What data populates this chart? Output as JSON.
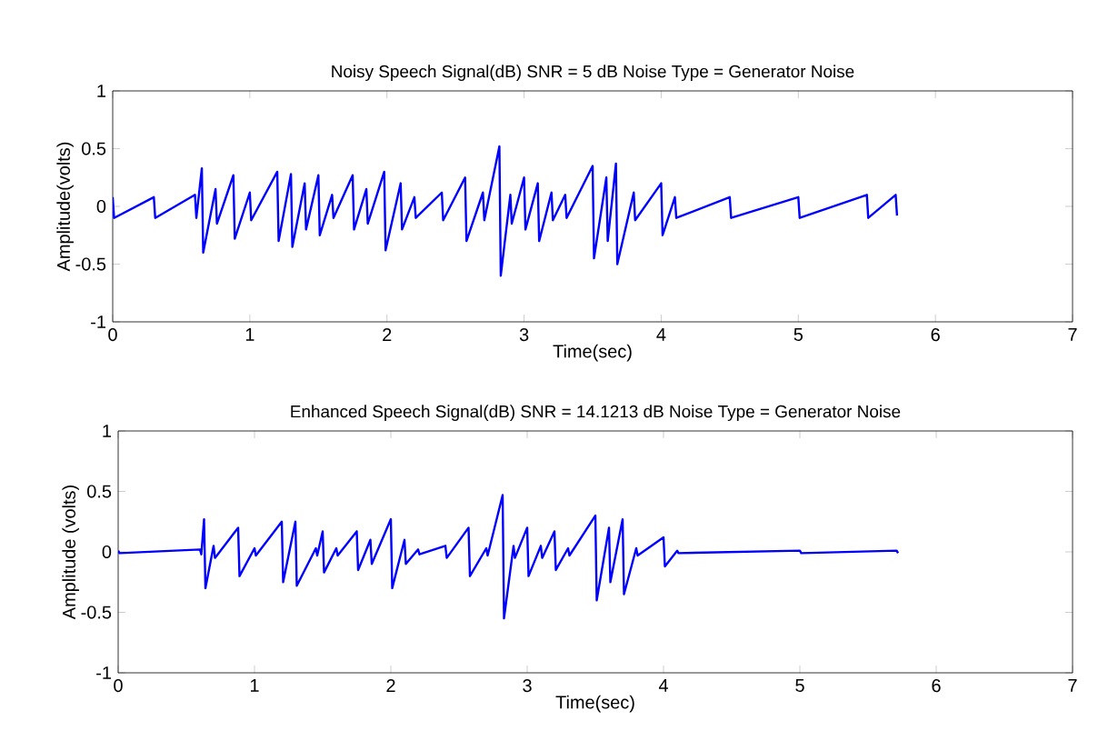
{
  "chart_data": [
    {
      "type": "line",
      "title": "Noisy Speech Signal(dB) SNR = 5 dB Noise Type = Generator Noise",
      "xlabel": "Time(sec)",
      "ylabel": "Amplitude(volts)",
      "xlim": [
        0,
        7
      ],
      "ylim": [
        -1,
        1
      ],
      "xticks": [
        0,
        1,
        2,
        3,
        4,
        5,
        6,
        7
      ],
      "yticks": [
        -1,
        -0.5,
        0,
        0.5,
        1
      ],
      "grid": false,
      "series": [
        {
          "color": "#0000ff",
          "x": [
            0,
            0.01,
            0.3,
            0.31,
            0.6,
            0.61,
            0.65,
            0.66,
            0.75,
            0.76,
            0.88,
            0.89,
            1.0,
            1.01,
            1.2,
            1.21,
            1.3,
            1.31,
            1.4,
            1.41,
            1.5,
            1.51,
            1.6,
            1.61,
            1.75,
            1.76,
            1.85,
            1.86,
            1.98,
            1.99,
            2.1,
            2.11,
            2.2,
            2.21,
            2.4,
            2.41,
            2.57,
            2.58,
            2.7,
            2.71,
            2.82,
            2.83,
            2.9,
            2.91,
            3.0,
            3.01,
            3.1,
            3.11,
            3.2,
            3.21,
            3.3,
            3.31,
            3.5,
            3.51,
            3.6,
            3.61,
            3.67,
            3.68,
            3.8,
            3.81,
            4.0,
            4.01,
            4.1,
            4.11,
            4.5,
            4.51,
            5.0,
            5.01,
            5.5,
            5.51,
            5.71,
            5.72
          ],
          "values": [
            0.08,
            -0.1,
            0.08,
            -0.1,
            0.1,
            -0.1,
            0.33,
            -0.4,
            0.15,
            -0.15,
            0.27,
            -0.28,
            0.12,
            -0.12,
            0.3,
            -0.3,
            0.28,
            -0.35,
            0.2,
            -0.2,
            0.27,
            -0.25,
            0.1,
            -0.1,
            0.27,
            -0.2,
            0.15,
            -0.15,
            0.3,
            -0.38,
            0.2,
            -0.2,
            0.08,
            -0.1,
            0.12,
            -0.12,
            0.25,
            -0.3,
            0.12,
            -0.12,
            0.52,
            -0.6,
            0.1,
            -0.15,
            0.25,
            -0.2,
            0.2,
            -0.3,
            0.12,
            -0.12,
            0.1,
            -0.1,
            0.35,
            -0.45,
            0.25,
            -0.3,
            0.37,
            -0.5,
            0.12,
            -0.12,
            0.2,
            -0.25,
            0.08,
            -0.1,
            0.08,
            -0.1,
            0.08,
            -0.1,
            0.1,
            -0.1,
            0.1,
            -0.08
          ]
        }
      ]
    },
    {
      "type": "line",
      "title": "Enhanced Speech Signal(dB) SNR = 14.1213 dB Noise Type = Generator Noise",
      "xlabel": "Time(sec)",
      "ylabel": "Amplitude (volts)",
      "xlim": [
        0,
        7
      ],
      "ylim": [
        -1,
        1
      ],
      "xticks": [
        0,
        1,
        2,
        3,
        4,
        5,
        6,
        7
      ],
      "yticks": [
        -1,
        -0.5,
        0,
        0.5,
        1
      ],
      "grid": false,
      "series": [
        {
          "color": "#0000ff",
          "x": [
            0,
            0.01,
            0.6,
            0.61,
            0.63,
            0.64,
            0.7,
            0.71,
            0.88,
            0.89,
            1.0,
            1.01,
            1.2,
            1.21,
            1.3,
            1.31,
            1.45,
            1.46,
            1.5,
            1.51,
            1.6,
            1.61,
            1.75,
            1.76,
            1.85,
            1.86,
            2.0,
            2.01,
            2.1,
            2.11,
            2.2,
            2.21,
            2.4,
            2.41,
            2.57,
            2.58,
            2.7,
            2.71,
            2.82,
            2.83,
            2.9,
            2.91,
            3.0,
            3.01,
            3.1,
            3.11,
            3.2,
            3.21,
            3.3,
            3.31,
            3.5,
            3.51,
            3.6,
            3.61,
            3.7,
            3.71,
            3.8,
            3.81,
            4.0,
            4.01,
            4.1,
            4.11,
            5.0,
            5.01,
            5.71,
            5.72
          ],
          "values": [
            0.01,
            -0.01,
            0.02,
            -0.02,
            0.27,
            -0.3,
            0.05,
            -0.05,
            0.2,
            -0.2,
            0.03,
            -0.03,
            0.25,
            -0.25,
            0.25,
            -0.28,
            0.03,
            -0.03,
            0.17,
            -0.17,
            0.03,
            -0.03,
            0.17,
            -0.15,
            0.1,
            -0.1,
            0.27,
            -0.3,
            0.1,
            -0.1,
            0.02,
            -0.02,
            0.05,
            -0.05,
            0.2,
            -0.2,
            0.03,
            -0.03,
            0.47,
            -0.55,
            0.05,
            -0.05,
            0.2,
            -0.2,
            0.05,
            -0.05,
            0.17,
            -0.15,
            0.03,
            -0.03,
            0.3,
            -0.4,
            0.2,
            -0.25,
            0.27,
            -0.35,
            0.03,
            -0.03,
            0.12,
            -0.12,
            0.01,
            -0.01,
            0.01,
            -0.01,
            0.01,
            -0.01
          ]
        }
      ]
    }
  ]
}
